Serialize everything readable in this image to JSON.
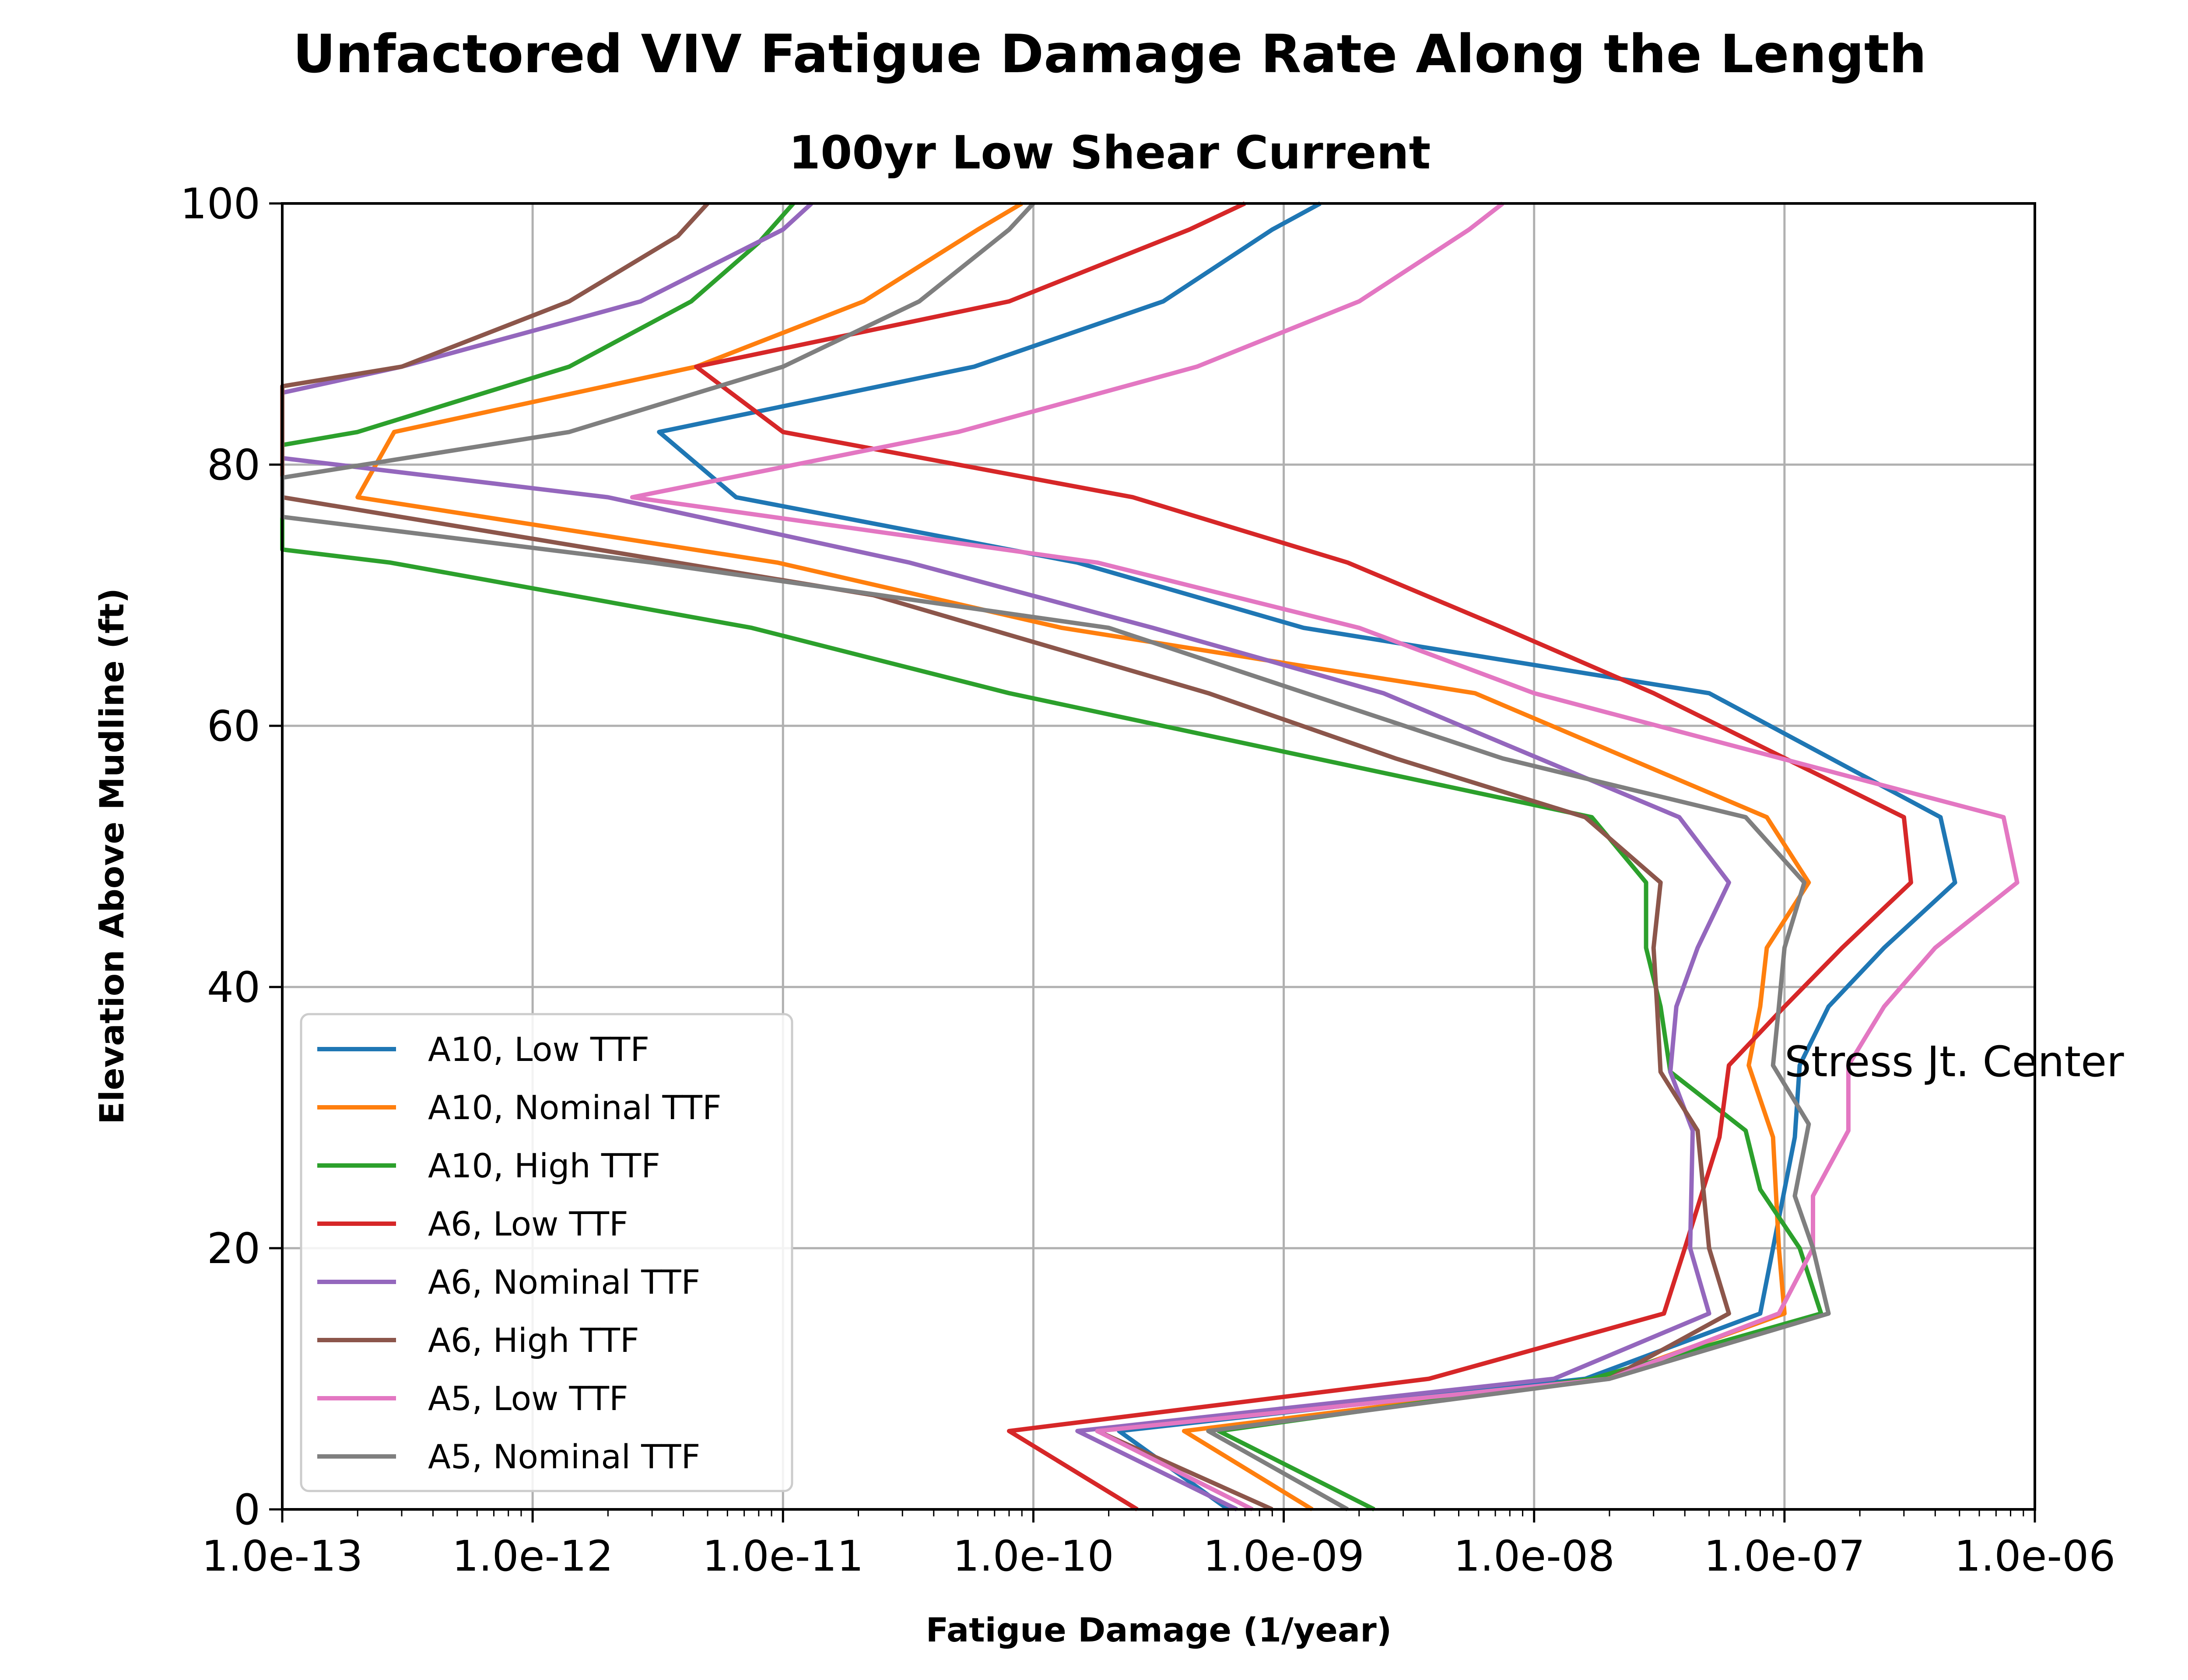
{
  "chart_data": {
    "type": "line",
    "title": "Unfactored VIV Fatigue Damage Rate Along the Length",
    "subtitle": "100yr Low Shear Current",
    "xlabel": "Fatigue Damage (1/year)",
    "ylabel": "Elevation Above Mudline (ft)",
    "xscale": "log",
    "xlim": [
      1e-13,
      1e-06
    ],
    "ylim": [
      0,
      100
    ],
    "xticks": [
      "1.0e-13",
      "1.0e-12",
      "1.0e-11",
      "1.0e-10",
      "1.0e-09",
      "1.0e-08",
      "1.0e-07",
      "1.0e-06"
    ],
    "yticks": [
      "0",
      "20",
      "40",
      "60",
      "80",
      "100"
    ],
    "grid": true,
    "legend_position": "lower-left",
    "annotation": {
      "text": "Stress Jt. Center",
      "x": 1e-07,
      "y": 34
    },
    "series": [
      {
        "name": "A10, Low TTF",
        "color": "#1f77b4",
        "points": [
          [
            6e-10,
            0
          ],
          [
            2.2e-10,
            6
          ],
          [
            1.6e-08,
            10
          ],
          [
            8e-08,
            15
          ],
          [
            9e-08,
            20
          ],
          [
            1.1e-07,
            28.5
          ],
          [
            1.15e-07,
            34
          ],
          [
            1.5e-07,
            38.5
          ],
          [
            2.5e-07,
            43
          ],
          [
            4.8e-07,
            48
          ],
          [
            4.2e-07,
            53
          ],
          [
            5e-08,
            62.5
          ],
          [
            1.2e-09,
            67.5
          ],
          [
            1.5e-10,
            72.5
          ],
          [
            6.5e-12,
            77.5
          ],
          [
            3.2e-12,
            82.5
          ],
          [
            5.8e-11,
            87.5
          ],
          [
            3.3e-10,
            92.5
          ],
          [
            9e-10,
            98
          ],
          [
            1.4e-09,
            100
          ]
        ]
      },
      {
        "name": "A10, Nominal TTF",
        "color": "#ff7f0e",
        "points": [
          [
            1.3e-09,
            0
          ],
          [
            4e-10,
            6
          ],
          [
            1.9e-08,
            10
          ],
          [
            1e-07,
            15
          ],
          [
            9.5e-08,
            20
          ],
          [
            9e-08,
            28.5
          ],
          [
            7.2e-08,
            34
          ],
          [
            8e-08,
            38.5
          ],
          [
            8.5e-08,
            43
          ],
          [
            1.25e-07,
            48
          ],
          [
            8.5e-08,
            53
          ],
          [
            5.8e-09,
            62.5
          ],
          [
            1.3e-10,
            67.5
          ],
          [
            9.5e-12,
            72.5
          ],
          [
            2e-13,
            77.5
          ],
          [
            2.8e-13,
            82.5
          ],
          [
            4.5e-12,
            87.5
          ],
          [
            2.1e-11,
            92.5
          ],
          [
            6e-11,
            98
          ],
          [
            9e-11,
            100
          ]
        ]
      },
      {
        "name": "A10, High TTF",
        "color": "#2ca02c",
        "points": [
          [
            2.3e-09,
            0
          ],
          [
            5.5e-10,
            6
          ],
          [
            1.7e-08,
            10
          ],
          [
            1.4e-07,
            15
          ],
          [
            1.15e-07,
            20
          ],
          [
            8e-08,
            24.5
          ],
          [
            7e-08,
            29
          ],
          [
            3.5e-08,
            33.5
          ],
          [
            3.2e-08,
            38.5
          ],
          [
            2.8e-08,
            43
          ],
          [
            2.8e-08,
            48
          ],
          [
            1.7e-08,
            53
          ],
          [
            8e-11,
            62.5
          ],
          [
            7.5e-12,
            67.5
          ],
          [
            2.7e-13,
            72.5
          ],
          [
            1e-13,
            73.5
          ],
          [
            1e-13,
            81.5
          ],
          [
            2e-13,
            82.5
          ],
          [
            1.4e-12,
            87.5
          ],
          [
            4.3e-12,
            92.5
          ],
          [
            8e-12,
            97
          ],
          [
            1.1e-11,
            100
          ]
        ]
      },
      {
        "name": "A6, Low TTF",
        "color": "#d62728",
        "points": [
          [
            2.6e-10,
            0
          ],
          [
            8e-11,
            6
          ],
          [
            3.8e-09,
            10
          ],
          [
            3.3e-08,
            15
          ],
          [
            4e-08,
            20
          ],
          [
            5.5e-08,
            28.5
          ],
          [
            6e-08,
            34
          ],
          [
            1e-07,
            38.5
          ],
          [
            1.7e-07,
            43
          ],
          [
            3.2e-07,
            48
          ],
          [
            3e-07,
            53
          ],
          [
            3e-08,
            62.5
          ],
          [
            7.5e-09,
            67.5
          ],
          [
            1.8e-09,
            72.5
          ],
          [
            2.5e-10,
            77.5
          ],
          [
            1e-11,
            82.5
          ],
          [
            4.5e-12,
            87.5
          ],
          [
            8e-11,
            92.5
          ],
          [
            4.2e-10,
            98
          ],
          [
            7e-10,
            100
          ]
        ]
      },
      {
        "name": "A6, Nominal TTF",
        "color": "#9467bd",
        "points": [
          [
            6.5e-10,
            0
          ],
          [
            1.5e-10,
            6
          ],
          [
            1.2e-08,
            10
          ],
          [
            5e-08,
            15
          ],
          [
            4.2e-08,
            20
          ],
          [
            4.3e-08,
            29
          ],
          [
            3.5e-08,
            33.5
          ],
          [
            3.7e-08,
            38.5
          ],
          [
            4.5e-08,
            43
          ],
          [
            6e-08,
            48
          ],
          [
            3.8e-08,
            53
          ],
          [
            2.5e-09,
            62.5
          ],
          [
            3e-10,
            67.5
          ],
          [
            3.2e-11,
            72.5
          ],
          [
            2e-12,
            77.5
          ],
          [
            1e-13,
            80.5
          ],
          [
            1e-13,
            85.5
          ],
          [
            3e-13,
            87.5
          ],
          [
            2.7e-12,
            92.5
          ],
          [
            1e-11,
            98
          ],
          [
            1.3e-11,
            100
          ]
        ]
      },
      {
        "name": "A6, High TTF",
        "color": "#8c564b",
        "points": [
          [
            9e-10,
            0
          ],
          [
            1.8e-10,
            6
          ],
          [
            2e-08,
            10
          ],
          [
            6e-08,
            15
          ],
          [
            5e-08,
            20
          ],
          [
            4.5e-08,
            29
          ],
          [
            3.2e-08,
            33.5
          ],
          [
            3.1e-08,
            38.5
          ],
          [
            3e-08,
            43
          ],
          [
            3.2e-08,
            48
          ],
          [
            1.6e-08,
            53
          ],
          [
            2.8e-09,
            57.5
          ],
          [
            5e-10,
            62.5
          ],
          [
            2.3e-11,
            70
          ],
          [
            1e-13,
            77.5
          ],
          [
            1e-13,
            86
          ],
          [
            3e-13,
            87.5
          ],
          [
            1.4e-12,
            92.5
          ],
          [
            3.8e-12,
            97.5
          ],
          [
            5e-12,
            100
          ]
        ]
      },
      {
        "name": "A5, Low TTF",
        "color": "#e377c2",
        "points": [
          [
            7.5e-10,
            0
          ],
          [
            1.8e-10,
            6
          ],
          [
            2e-08,
            10
          ],
          [
            9.5e-08,
            15
          ],
          [
            1.3e-07,
            20
          ],
          [
            1.3e-07,
            24
          ],
          [
            1.8e-07,
            29
          ],
          [
            1.8e-07,
            34
          ],
          [
            2.5e-07,
            38.5
          ],
          [
            4e-07,
            43
          ],
          [
            8.5e-07,
            48
          ],
          [
            7.5e-07,
            53
          ],
          [
            1e-08,
            62.5
          ],
          [
            2e-09,
            67.5
          ],
          [
            1.8e-10,
            72.5
          ],
          [
            2.5e-12,
            77.5
          ],
          [
            5e-11,
            82.5
          ],
          [
            4.5e-10,
            87.5
          ],
          [
            2e-09,
            92.5
          ],
          [
            5.5e-09,
            98
          ],
          [
            7.5e-09,
            100
          ]
        ]
      },
      {
        "name": "A5, Nominal TTF",
        "color": "#7f7f7f",
        "points": [
          [
            1.8e-09,
            0
          ],
          [
            5e-10,
            6
          ],
          [
            2e-08,
            10
          ],
          [
            1.5e-07,
            15
          ],
          [
            1.3e-07,
            20
          ],
          [
            1.1e-07,
            24
          ],
          [
            1.25e-07,
            29.5
          ],
          [
            9e-08,
            34
          ],
          [
            9.5e-08,
            38.5
          ],
          [
            1e-07,
            43
          ],
          [
            1.2e-07,
            48
          ],
          [
            7e-08,
            53
          ],
          [
            7.5e-09,
            57.5
          ],
          [
            2e-10,
            67.5
          ],
          [
            3e-12,
            72.5
          ],
          [
            1e-13,
            76
          ],
          [
            1e-13,
            79
          ],
          [
            1.4e-12,
            82.5
          ],
          [
            1e-11,
            87.5
          ],
          [
            3.5e-11,
            92.5
          ],
          [
            8e-11,
            98
          ],
          [
            1e-10,
            100
          ]
        ]
      }
    ]
  }
}
